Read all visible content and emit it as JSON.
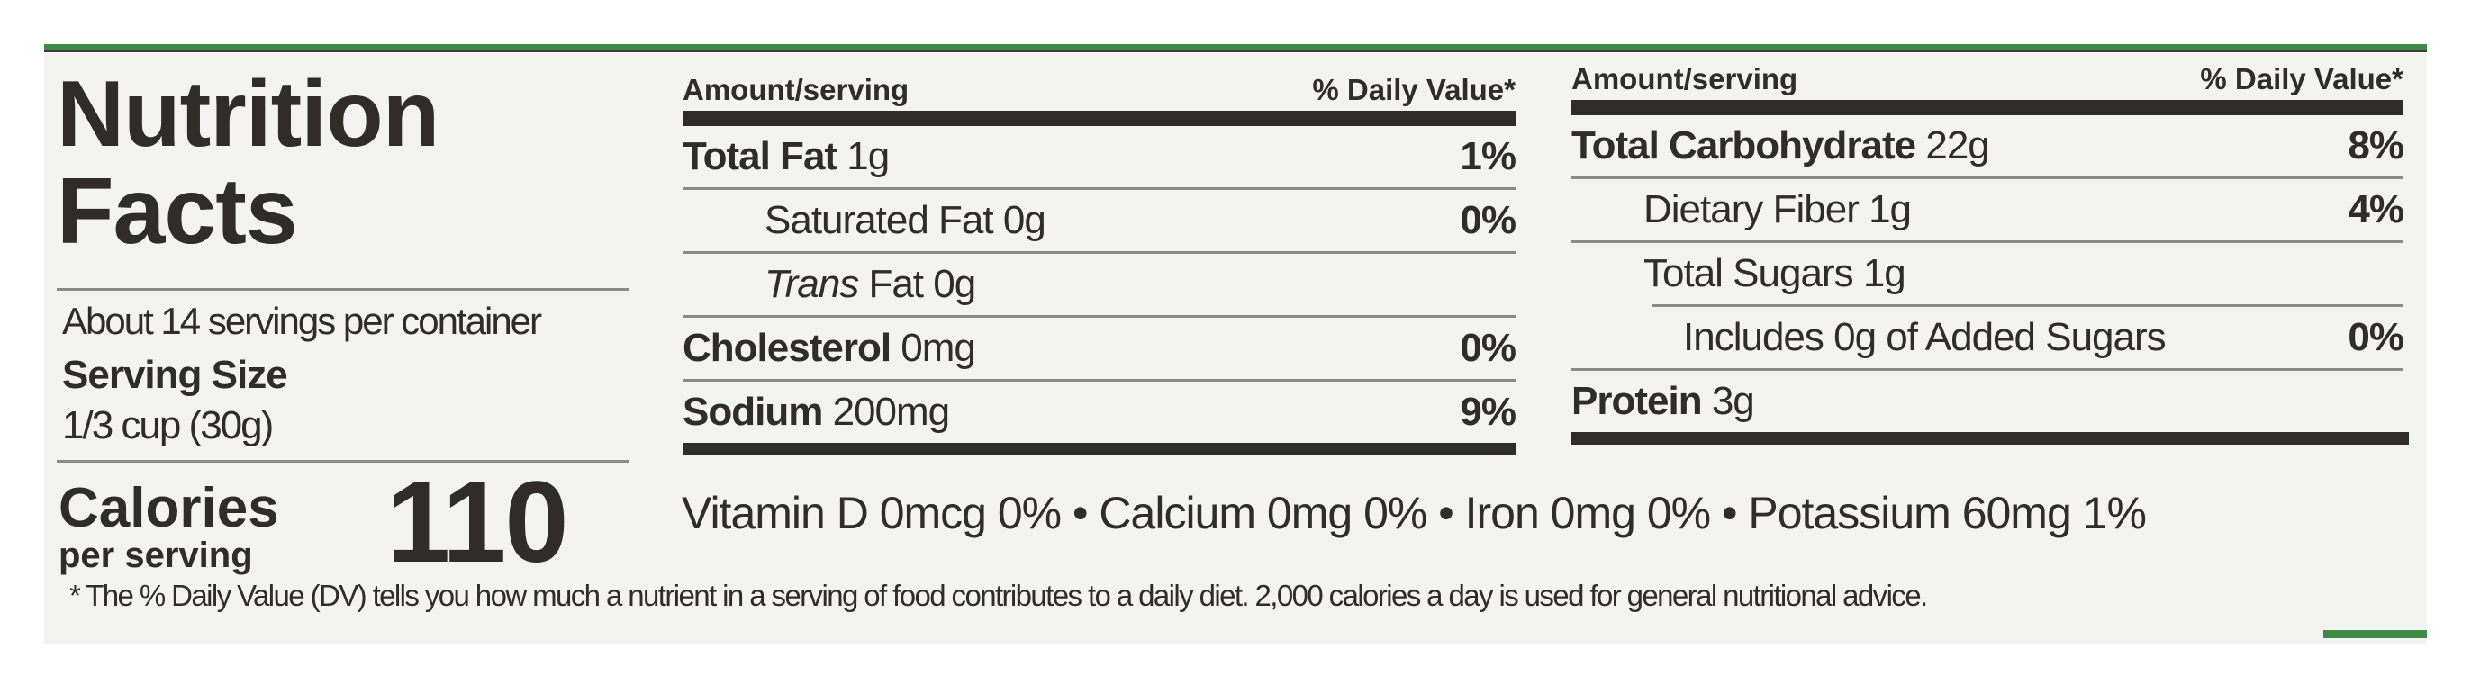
{
  "title_line1": "Nutrition",
  "title_line2": "Facts",
  "servings_per_container": "About 14 servings per container",
  "serving_size_label": "Serving Size",
  "serving_size_value": "1/3 cup (30g)",
  "calories_label": "Calories",
  "calories_sub": "per serving",
  "calories_value": "110",
  "left_table": {
    "header_amount": "Amount/serving",
    "header_dv": "% Daily Value*",
    "rows": [
      {
        "name": "Total Fat",
        "amount": "1g",
        "dv": "1%"
      },
      {
        "name": "Saturated Fat",
        "amount": "0g",
        "dv": "0%"
      },
      {
        "name": "Trans",
        "name_rest": "Fat",
        "amount": "0g",
        "dv": ""
      },
      {
        "name": "Cholesterol",
        "amount": "0mg",
        "dv": "0%"
      },
      {
        "name": "Sodium",
        "amount": "200mg",
        "dv": "9%"
      }
    ]
  },
  "right_table": {
    "header_amount": "Amount/serving",
    "header_dv": "% Daily Value*",
    "rows": [
      {
        "name": "Total Carbohydrate",
        "amount": "22g",
        "dv": "8%"
      },
      {
        "name": "Dietary Fiber",
        "amount": "1g",
        "dv": "4%"
      },
      {
        "name": "Total Sugars",
        "amount": "1g",
        "dv": ""
      },
      {
        "name": "Includes 0g of Added Sugars",
        "amount": "",
        "dv": "0%"
      },
      {
        "name": "Protein",
        "amount": "3g",
        "dv": ""
      }
    ]
  },
  "vitamins": "Vitamin D 0mcg 0% • Calcium 0mg 0% • Iron 0mg 0% • Potassium 60mg 1%",
  "footnote": "* The % Daily Value (DV) tells you how much a nutrient in a serving of food contributes to a daily diet. 2,000 calories a day is used for general nutritional advice.",
  "colors": {
    "ink": "#2f2c29",
    "panel": "#f3f3f1",
    "green": "#3f8a45"
  }
}
